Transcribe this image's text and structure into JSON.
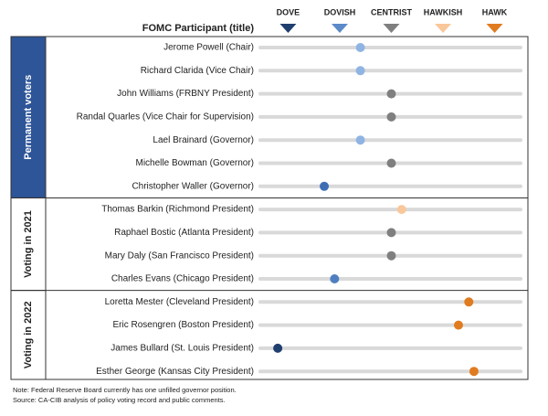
{
  "chart_data": {
    "type": "dot",
    "title": "FOMC Participant (title)",
    "scale": [
      {
        "label": "DOVE",
        "value": 1,
        "color": "#1f3f6e"
      },
      {
        "label": "DOVISH",
        "value": 2,
        "color": "#5b8ac9"
      },
      {
        "label": "CENTRIST",
        "value": 3,
        "color": "#7f7f7f"
      },
      {
        "label": "HAWKISH",
        "value": 4,
        "color": "#f9c79a"
      },
      {
        "label": "HAWK",
        "value": 5,
        "color": "#e07b1f"
      }
    ],
    "xlim": [
      0.55,
      5.45
    ],
    "groups": [
      {
        "name": "Permanent voters",
        "categories": [
          "Jerome Powell (Chair)",
          "Richard Clarida (Vice Chair)",
          "John Williams (FRBNY President)",
          "Randal Quarles (Vice Chair for Supervision)",
          "Lael Brainard (Governor)",
          "Michelle Bowman (Governor)",
          "Christopher Waller (Governor)"
        ],
        "values": [
          2.4,
          2.4,
          3,
          3,
          2.4,
          3,
          1.7
        ],
        "colors": [
          "#8fb4e3",
          "#8fb4e3",
          "#7f7f7f",
          "#7f7f7f",
          "#8fb4e3",
          "#7f7f7f",
          "#3e6fb5"
        ]
      },
      {
        "name": "Voting in 2021",
        "categories": [
          "Thomas Barkin (Richmond President)",
          "Raphael Bostic (Atlanta President)",
          "Mary Daly (San Francisco President)",
          "Charles Evans (Chicago President)"
        ],
        "values": [
          3.2,
          3,
          3,
          1.9
        ],
        "colors": [
          "#f9c79a",
          "#7f7f7f",
          "#7f7f7f",
          "#4f7fc0"
        ]
      },
      {
        "name": "Voting in 2022",
        "categories": [
          "Loretta Mester (Cleveland President)",
          "Eric Rosengren (Boston President)",
          "James Bullard (St. Louis President)",
          "Esther George (Kansas City President)"
        ],
        "values": [
          4.5,
          4.3,
          0.8,
          4.6
        ],
        "colors": [
          "#e07b1f",
          "#e07b1f",
          "#1f3f6e",
          "#e07b1f"
        ]
      }
    ],
    "notes": [
      "Note: Federal Reserve Board currently has one unfilled  governor position.",
      "Source: CA-CIB analysis of policy voting record and public comments."
    ]
  }
}
